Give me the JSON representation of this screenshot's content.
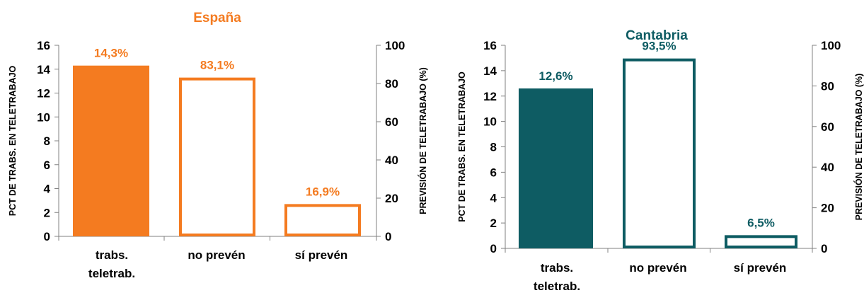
{
  "chart_data": [
    {
      "type": "bar",
      "title": "España",
      "color": "#F47B20",
      "categories": [
        "trabs.\nteletrab.",
        "no prevén",
        "sí prevén"
      ],
      "bars": [
        {
          "value": 14.3,
          "axis": "left",
          "filled": true,
          "label": "14,3%"
        },
        {
          "value": 83.1,
          "axis": "right",
          "filled": false,
          "label": "83,1%"
        },
        {
          "value": 16.9,
          "axis": "right",
          "filled": false,
          "label": "16,9%"
        }
      ],
      "ylabel": "PCT DE TRABS. EN TELETRABAJO",
      "ylabel_right": "PREVISIÓN DE TELETRABAJO (%)",
      "ylim": [
        0,
        16
      ],
      "yticks": [
        0,
        2,
        4,
        6,
        8,
        10,
        12,
        14,
        16
      ],
      "ylim_right": [
        0,
        100
      ],
      "yticks_right": [
        0,
        20,
        40,
        60,
        80,
        100
      ],
      "grid": false
    },
    {
      "type": "bar",
      "title": "Cantabria",
      "color": "#0E5C63",
      "categories": [
        "trabs.\nteletrab.",
        "no prevén",
        "sí prevén"
      ],
      "bars": [
        {
          "value": 12.6,
          "axis": "left",
          "filled": true,
          "label": "12,6%"
        },
        {
          "value": 93.5,
          "axis": "right",
          "filled": false,
          "label": "93,5%"
        },
        {
          "value": 6.5,
          "axis": "right",
          "filled": false,
          "label": "6,5%"
        }
      ],
      "ylabel": "PCT DE TRABS. EN TELETRABAJO",
      "ylabel_right": "PREVISIÓN DE TELETRABAJO (%)",
      "ylim": [
        0,
        16
      ],
      "yticks": [
        0,
        2,
        4,
        6,
        8,
        10,
        12,
        14,
        16
      ],
      "ylim_right": [
        0,
        100
      ],
      "yticks_right": [
        0,
        20,
        40,
        60,
        80,
        100
      ],
      "grid": false
    }
  ]
}
